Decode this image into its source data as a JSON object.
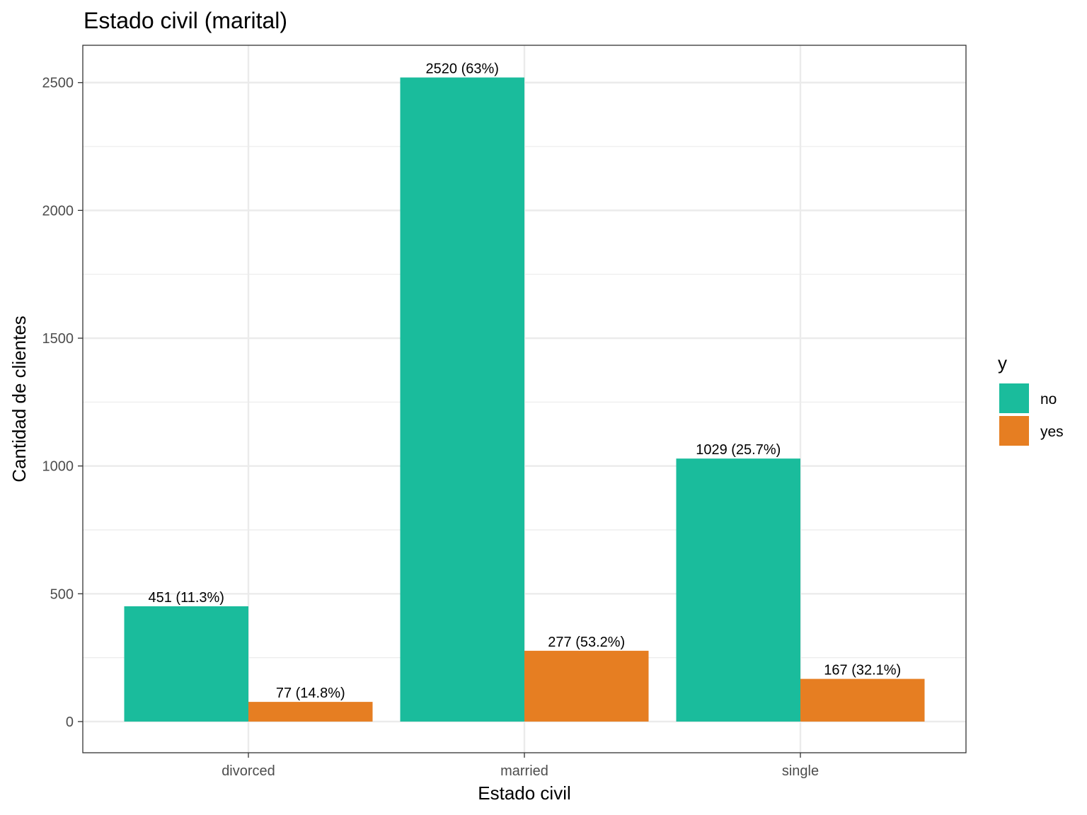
{
  "chart_data": {
    "type": "bar",
    "title": "Estado civil (marital)",
    "xlabel": "Estado civil",
    "ylabel": "Cantidad de clientes",
    "categories": [
      "divorced",
      "married",
      "single"
    ],
    "series": [
      {
        "name": "no",
        "color": "#1ABC9C",
        "values": [
          451,
          2520,
          1029
        ],
        "labels": [
          "451 (11.3%)",
          "2520 (63%)",
          "1029 (25.7%)"
        ]
      },
      {
        "name": "yes",
        "color": "#E67E22",
        "values": [
          77,
          277,
          167
        ],
        "labels": [
          "77 (14.8%)",
          "277 (53.2%)",
          "167 (32.1%)"
        ]
      }
    ],
    "ylim": [
      -122,
      2646
    ],
    "yticks": [
      0,
      500,
      1000,
      1500,
      2000,
      2500
    ],
    "yticks_minor": [
      250,
      750,
      1250,
      1750,
      2250
    ],
    "legend": {
      "title": "y",
      "position": "right"
    },
    "grid": true
  }
}
